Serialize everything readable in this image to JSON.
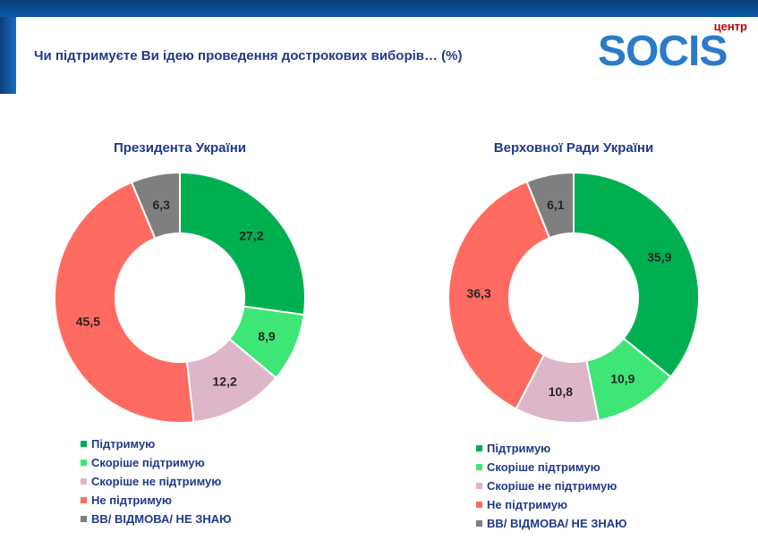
{
  "header": {
    "title": "Чи підтримуєте Ви ідею проведення дострокових виборів…  (%)",
    "logo_top": "центр",
    "logo_main": "SOCIS"
  },
  "colors": [
    "#00b050",
    "#3ee676",
    "#ddb7c9",
    "#ff6b61",
    "#7f7f7f"
  ],
  "chart_data": [
    {
      "type": "pie",
      "donut": true,
      "title": "Президента України",
      "categories": [
        "Підтримую",
        "Скоріше підтримую",
        "Скоріше не підтримую",
        "Не підтримую",
        "ВВ/ ВІДМОВА/ НЕ ЗНАЮ"
      ],
      "values": [
        27.2,
        8.9,
        12.2,
        45.5,
        6.3
      ],
      "labels": [
        "27,2",
        "8,9",
        "12,2",
        "45,5",
        "6,3"
      ],
      "legend": "bottom"
    },
    {
      "type": "pie",
      "donut": true,
      "title": "Верховної Ради України",
      "categories": [
        "Підтримую",
        "Скоріше підтримую",
        "Скоріше не підтримую",
        "Не підтримую",
        "ВВ/ ВІДМОВА/ НЕ ЗНАЮ"
      ],
      "values": [
        35.9,
        10.9,
        10.8,
        36.3,
        6.1
      ],
      "labels": [
        "35,9",
        "10,9",
        "10,8",
        "36,3",
        "6,1"
      ],
      "legend": "bottom"
    }
  ]
}
